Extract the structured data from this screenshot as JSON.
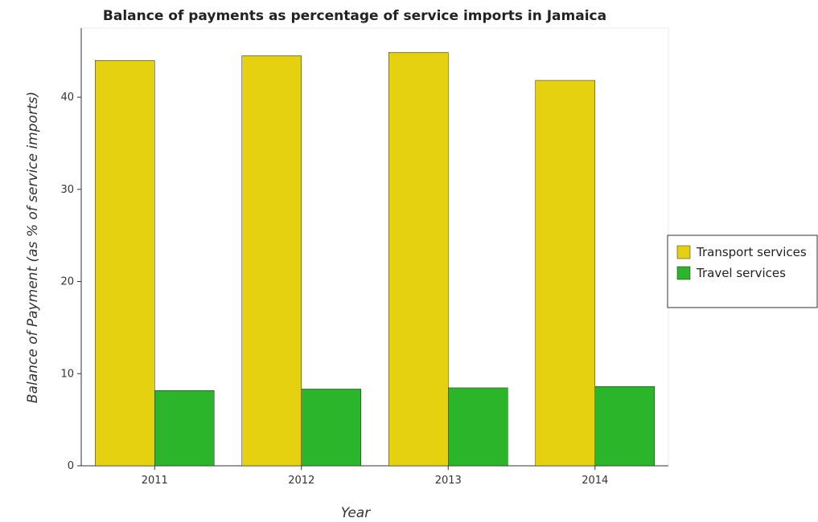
{
  "chart_data": {
    "type": "bar",
    "title": "Balance of payments as percentage of service imports in Jamaica",
    "xlabel": "Year",
    "ylabel": "Balance of Payment (as % of service imports)",
    "categories": [
      "2011",
      "2012",
      "2013",
      "2014"
    ],
    "series": [
      {
        "name": "Transport services",
        "color": "#e5d10f",
        "values": [
          43.98,
          44.5,
          44.87,
          41.83
        ]
      },
      {
        "name": "Travel services",
        "color": "#2bb52b",
        "values": [
          8.17,
          8.33,
          8.46,
          8.61
        ]
      }
    ],
    "ylim": [
      0,
      47.5
    ],
    "yticks": [
      0,
      10,
      20,
      30,
      40
    ],
    "grid": false,
    "legend_position": "right"
  }
}
